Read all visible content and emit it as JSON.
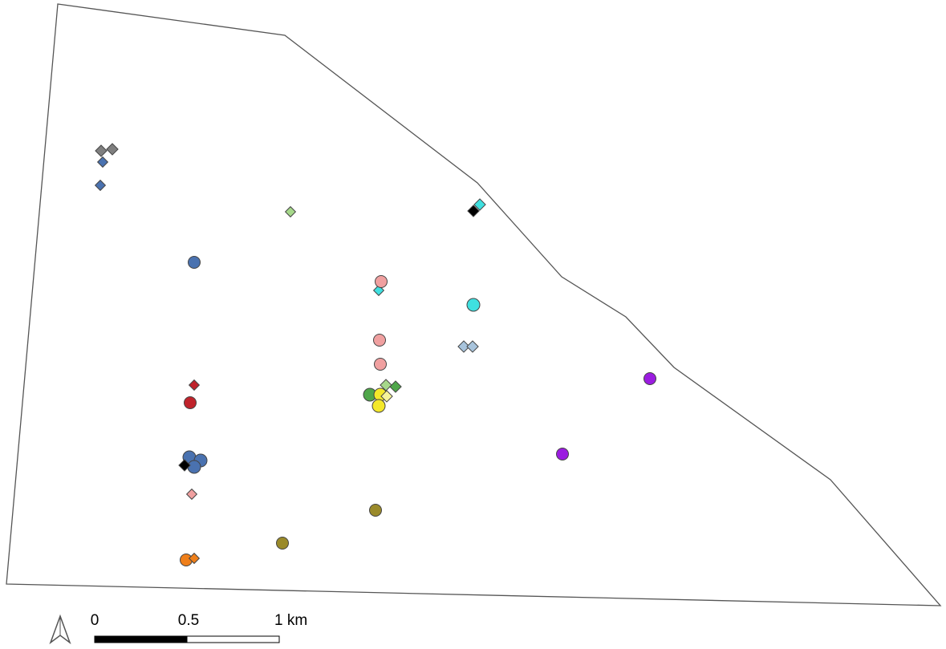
{
  "scale_bar": {
    "labels": [
      "0",
      "0.5",
      "1 km"
    ]
  }
}
